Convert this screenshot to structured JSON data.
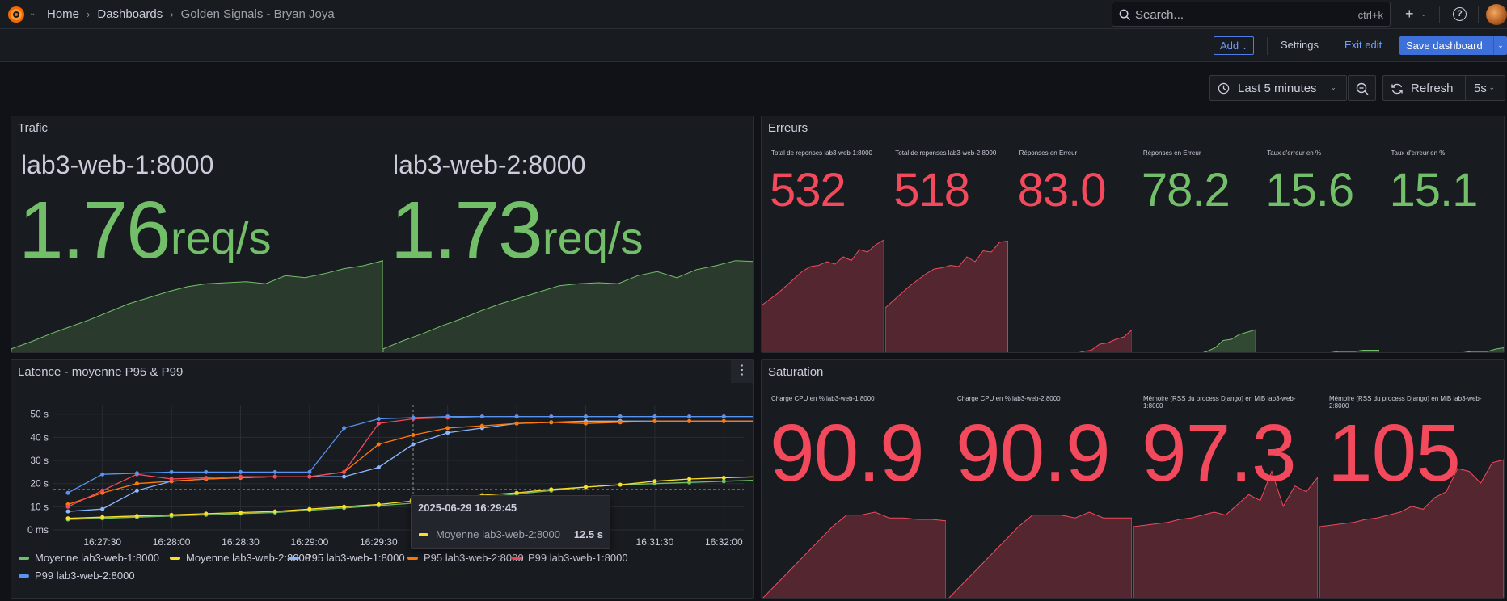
{
  "nav": {
    "breadcrumbs": [
      "Home",
      "Dashboards",
      "Golden Signals - Bryan Joya"
    ],
    "search_placeholder": "Search...",
    "search_shortcut": "ctrl+k"
  },
  "toolbar": {
    "add_label": "Add",
    "settings_label": "Settings",
    "exit_label": "Exit edit",
    "save_label": "Save dashboard"
  },
  "timepicker": {
    "range_label": "Last 5 minutes",
    "refresh_label": "Refresh",
    "refresh_interval": "5s"
  },
  "colors": {
    "green": "#73bf69",
    "red": "#f2495c",
    "yellow": "#fade2a",
    "blue": "#5794f2",
    "light_blue": "#8ab8ff",
    "orange": "#ff780a"
  },
  "panels": {
    "trafic": {
      "title": "Trafic",
      "stats": [
        {
          "name": "lab3-web-1:8000",
          "value": "1.76",
          "unit": "req/s",
          "spark": [
            0.05,
            0.12,
            0.2,
            0.27,
            0.34,
            0.42,
            0.5,
            0.56,
            0.62,
            0.67,
            0.7,
            0.71,
            0.72,
            0.7,
            0.78,
            0.76,
            0.8,
            0.85,
            0.88,
            0.93
          ]
        },
        {
          "name": "lab3-web-2:8000",
          "value": "1.73",
          "unit": "req/s",
          "spark": [
            0.05,
            0.13,
            0.2,
            0.28,
            0.35,
            0.43,
            0.5,
            0.56,
            0.62,
            0.68,
            0.7,
            0.71,
            0.7,
            0.78,
            0.82,
            0.76,
            0.84,
            0.88,
            0.93,
            0.92
          ]
        }
      ]
    },
    "erreurs": {
      "title": "Erreurs",
      "stats": [
        {
          "name": "Total de reponses lab3-web-1:8000",
          "value": "532",
          "color": "red",
          "spark": [
            0.4,
            0.45,
            0.5,
            0.56,
            0.62,
            0.68,
            0.72,
            0.73,
            0.76,
            0.74,
            0.8,
            0.77,
            0.86,
            0.84,
            0.9,
            0.94
          ]
        },
        {
          "name": "Total de reponses lab3-web-2:8000",
          "value": "518",
          "color": "red",
          "spark": [
            0.38,
            0.44,
            0.5,
            0.56,
            0.61,
            0.66,
            0.7,
            0.71,
            0.73,
            0.72,
            0.8,
            0.76,
            0.85,
            0.84,
            0.92,
            0.93
          ]
        },
        {
          "name": "Réponses en Erreur",
          "value": "83.0",
          "color": "red",
          "spark": [
            0,
            0,
            0,
            0,
            0,
            0,
            0,
            0,
            0,
            0.02,
            0.03,
            0.08,
            0.09,
            0.12,
            0.14,
            0.2
          ]
        },
        {
          "name": "Réponses en Erreur",
          "value": "78.2",
          "color": "green",
          "spark": [
            0,
            0,
            0,
            0,
            0,
            0,
            0,
            0,
            0,
            0.02,
            0.05,
            0.11,
            0.12,
            0.16,
            0.18,
            0.2
          ]
        },
        {
          "name": "Taux d'erreur en %",
          "value": "15.6",
          "color": "green",
          "spark": [
            0,
            0,
            0,
            0,
            0,
            0,
            0,
            0,
            0.01,
            0.01,
            0.02,
            0.02,
            0.02,
            0.03,
            0.03,
            0.03
          ]
        },
        {
          "name": "Taux d'erreur en %",
          "value": "15.1",
          "color": "green",
          "spark": [
            0,
            0,
            0,
            0,
            0,
            0,
            0,
            0,
            0.01,
            0.01,
            0.01,
            0.02,
            0.02,
            0.02,
            0.04,
            0.05
          ]
        }
      ]
    },
    "saturation": {
      "title": "Saturation",
      "stats": [
        {
          "name": "Charge CPU en % lab3-web-1:8000",
          "value": "90.9",
          "spark": [
            0,
            0.1,
            0.2,
            0.3,
            0.4,
            0.5,
            0.58,
            0.58,
            0.6,
            0.56,
            0.56,
            0.55,
            0.55,
            0.54
          ]
        },
        {
          "name": "Charge CPU en % lab3-web-2:8000",
          "value": "90.9",
          "spark": [
            0,
            0.1,
            0.2,
            0.3,
            0.4,
            0.5,
            0.58,
            0.58,
            0.58,
            0.56,
            0.6,
            0.56,
            0.56,
            0.56
          ]
        },
        {
          "name": "Mémoire (RSS du process Django) en MiB lab3-web-1:8000",
          "value": "97.3",
          "spark": [
            0.5,
            0.51,
            0.52,
            0.53,
            0.55,
            0.56,
            0.58,
            0.6,
            0.58,
            0.65,
            0.72,
            0.68,
            0.88,
            0.64,
            0.78,
            0.74,
            0.84
          ]
        },
        {
          "name": "Mémoire (RSS du process Django) en MiB lab3-web-2:8000",
          "value": "105",
          "spark": [
            0.5,
            0.51,
            0.52,
            0.53,
            0.55,
            0.56,
            0.58,
            0.6,
            0.64,
            0.62,
            0.7,
            0.74,
            0.9,
            0.88,
            0.8,
            0.94,
            0.96
          ]
        }
      ]
    },
    "latence": {
      "title": "Latence - moyenne P95 & P99",
      "tooltip": {
        "time": "2025-06-29 16:29:45",
        "series": "Moyenne lab3-web-2:8000",
        "value": "12.5 s"
      }
    }
  },
  "chart_data": {
    "type": "line",
    "title": "Latence - moyenne P95 & P99",
    "x": [
      "16:27:20",
      "16:27:30",
      "16:27:45",
      "16:28:00",
      "16:28:15",
      "16:28:30",
      "16:28:45",
      "16:29:00",
      "16:29:15",
      "16:29:30",
      "16:29:45",
      "16:30:00",
      "16:30:15",
      "16:30:30",
      "16:30:45",
      "16:31:00",
      "16:31:15",
      "16:31:30",
      "16:31:45",
      "16:32:00",
      "16:32:10"
    ],
    "x_ticks": [
      "16:27:30",
      "16:28:00",
      "16:28:30",
      "16:29:00",
      "16:29:30",
      "16:30:00",
      "16:30:30",
      "16:31:00",
      "16:31:30",
      "16:32:00"
    ],
    "y_ticks": [
      "0 ms",
      "10 s",
      "20 s",
      "30 s",
      "40 s",
      "50 s"
    ],
    "ylim": [
      0,
      52
    ],
    "series": [
      {
        "name": "Moyenne lab3-web-1:8000",
        "color": "#73bf69",
        "values": [
          4.5,
          5,
          5.5,
          6,
          6.5,
          7,
          7.5,
          8.5,
          9.5,
          10.5,
          11.5,
          12.5,
          14,
          15.5,
          17,
          18.5,
          19.5,
          20,
          20.5,
          21,
          21.5
        ]
      },
      {
        "name": "Moyenne lab3-web-2:8000",
        "color": "#fade2a",
        "values": [
          5,
          5.5,
          6,
          6.5,
          7,
          7.5,
          8,
          9,
          10,
          11,
          12.5,
          13.5,
          15,
          16,
          17.5,
          18.5,
          19.5,
          21,
          22,
          22.5,
          23
        ]
      },
      {
        "name": "P95 lab3-web-1:8000",
        "color": "#8ab8ff",
        "values": [
          8,
          9,
          17,
          21,
          22,
          22.5,
          23,
          23,
          23,
          27,
          37,
          42,
          44,
          46,
          46.5,
          47,
          47,
          47,
          47,
          47,
          47
        ]
      },
      {
        "name": "P95 lab3-web-2:8000",
        "color": "#ff780a",
        "values": [
          11,
          16,
          20,
          21,
          22,
          22.5,
          23,
          23,
          25,
          37,
          41,
          44,
          45,
          46,
          46.5,
          46,
          46.5,
          47,
          47,
          47,
          47
        ]
      },
      {
        "name": "P99 lab3-web-1:8000",
        "color": "#f2495c",
        "values": [
          10,
          17,
          24,
          22,
          22.5,
          23,
          23,
          23,
          25,
          46,
          48,
          48.5,
          49,
          49,
          49,
          49,
          49,
          49,
          49,
          49,
          49
        ]
      },
      {
        "name": "P99 lab3-web-2:8000",
        "color": "#5794f2",
        "values": [
          16,
          24,
          24.5,
          25,
          25,
          25,
          25,
          25,
          44,
          48,
          48.5,
          49,
          49,
          49,
          49,
          49,
          49,
          49,
          49,
          49,
          49
        ]
      }
    ],
    "legend_position": "bottom",
    "grid": true
  }
}
